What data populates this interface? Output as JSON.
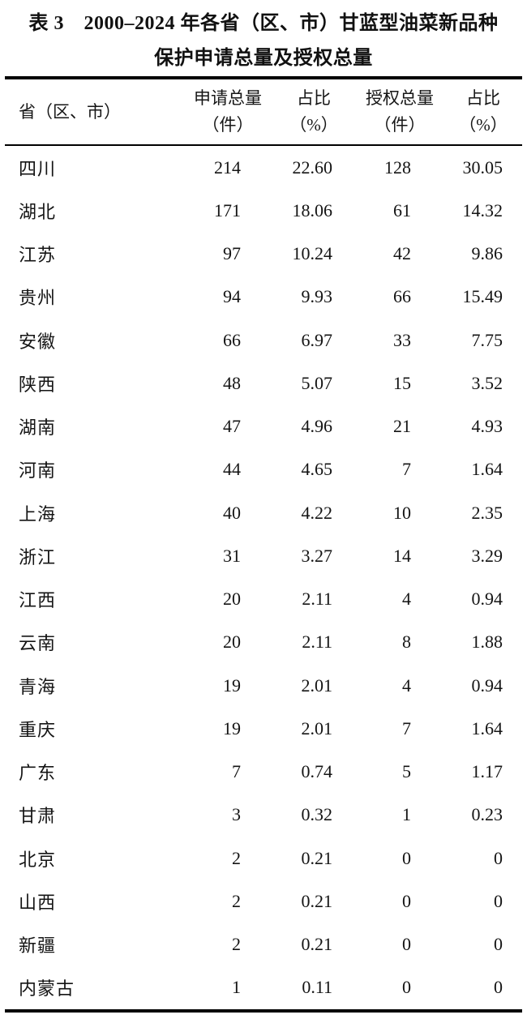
{
  "title": {
    "line1": "表 3　2000–2024 年各省（区、市）甘蓝型油菜新品种",
    "line2": "保护申请总量及授权总量"
  },
  "table": {
    "columns": [
      {
        "label": "省（区、市）",
        "sub": ""
      },
      {
        "label": "申请总量",
        "sub": "（件）"
      },
      {
        "label": "占比",
        "sub": "（%）"
      },
      {
        "label": "授权总量",
        "sub": "（件）"
      },
      {
        "label": "占比",
        "sub": "（%）"
      }
    ],
    "rows": [
      [
        "四川",
        "214",
        "22.60",
        "128",
        "30.05"
      ],
      [
        "湖北",
        "171",
        "18.06",
        "61",
        "14.32"
      ],
      [
        "江苏",
        "97",
        "10.24",
        "42",
        "9.86"
      ],
      [
        "贵州",
        "94",
        "9.93",
        "66",
        "15.49"
      ],
      [
        "安徽",
        "66",
        "6.97",
        "33",
        "7.75"
      ],
      [
        "陕西",
        "48",
        "5.07",
        "15",
        "3.52"
      ],
      [
        "湖南",
        "47",
        "4.96",
        "21",
        "4.93"
      ],
      [
        "河南",
        "44",
        "4.65",
        "7",
        "1.64"
      ],
      [
        "上海",
        "40",
        "4.22",
        "10",
        "2.35"
      ],
      [
        "浙江",
        "31",
        "3.27",
        "14",
        "3.29"
      ],
      [
        "江西",
        "20",
        "2.11",
        "4",
        "0.94"
      ],
      [
        "云南",
        "20",
        "2.11",
        "8",
        "1.88"
      ],
      [
        "青海",
        "19",
        "2.01",
        "4",
        "0.94"
      ],
      [
        "重庆",
        "19",
        "2.01",
        "7",
        "1.64"
      ],
      [
        "广东",
        "7",
        "0.74",
        "5",
        "1.17"
      ],
      [
        "甘肃",
        "3",
        "0.32",
        "1",
        "0.23"
      ],
      [
        "北京",
        "2",
        "0.21",
        "0",
        "0"
      ],
      [
        "山西",
        "2",
        "0.21",
        "0",
        "0"
      ],
      [
        "新疆",
        "2",
        "0.21",
        "0",
        "0"
      ],
      [
        "内蒙古",
        "1",
        "0.11",
        "0",
        "0"
      ]
    ]
  },
  "colors": {
    "text": "#141414",
    "rule": "#000000",
    "background": "#ffffff"
  }
}
